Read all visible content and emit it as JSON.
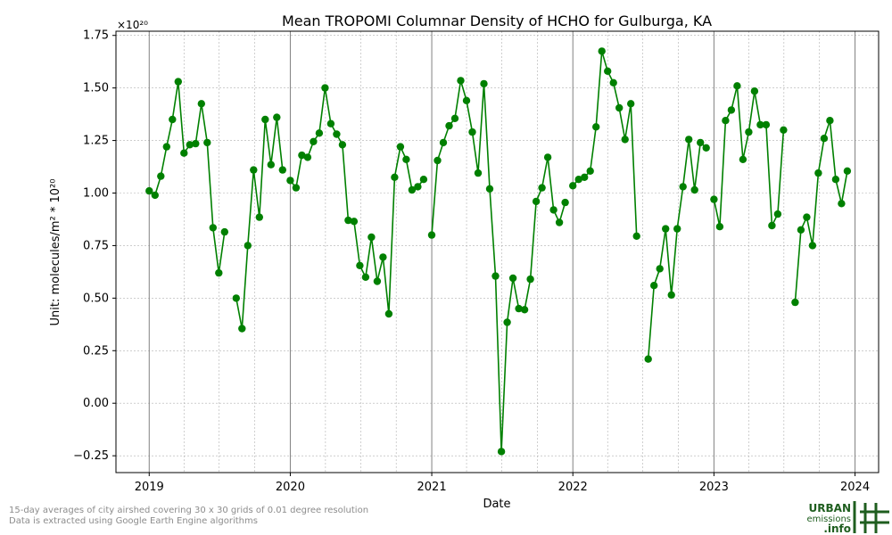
{
  "chart_data": {
    "type": "line",
    "title": "Mean TROPOMI Columnar Density of HCHO for Gulburga, KA",
    "xlabel": "Date",
    "ylabel": "Unit: molecules/m² * 10²⁰",
    "y_multiplier_label": "×10²⁰",
    "ylim": [
      -0.33,
      1.77
    ],
    "xlim": [
      "2018-10-07",
      "2024-03-02"
    ],
    "yticks": [
      -0.25,
      0.0,
      0.25,
      0.5,
      0.75,
      1.0,
      1.25,
      1.5,
      1.75
    ],
    "ytick_labels": [
      "−0.25",
      "0.00",
      "0.25",
      "0.50",
      "0.75",
      "1.00",
      "1.25",
      "1.50",
      "1.75"
    ],
    "xticks": [
      "2019-01-01",
      "2020-01-01",
      "2021-01-01",
      "2022-01-01",
      "2023-01-01",
      "2024-01-01"
    ],
    "xtick_labels": [
      "2019",
      "2020",
      "2021",
      "2022",
      "2023",
      "2024"
    ],
    "grid": true,
    "color": "#008000",
    "series": [
      {
        "x": [
          "2019-01-01",
          "2019-01-16",
          "2019-01-31",
          "2019-02-15",
          "2019-03-02",
          "2019-03-17",
          "2019-04-01",
          "2019-04-16",
          "2019-05-01",
          "2019-05-16",
          "2019-05-31",
          "2019-06-15",
          "2019-06-30",
          "2019-07-15",
          "2019-07-30",
          "2019-08-14",
          "2019-08-29",
          "2019-09-13",
          "2019-09-28",
          "2019-10-13",
          "2019-10-28",
          "2019-11-12",
          "2019-11-27",
          "2019-12-12",
          "2019-12-27",
          "2020-01-01",
          "2020-01-16",
          "2020-01-31",
          "2020-02-15",
          "2020-03-01",
          "2020-03-16",
          "2020-03-31",
          "2020-04-15",
          "2020-04-30",
          "2020-05-15",
          "2020-05-30",
          "2020-06-14",
          "2020-06-29",
          "2020-07-14",
          "2020-07-29",
          "2020-08-13",
          "2020-08-28",
          "2020-09-12",
          "2020-09-27",
          "2020-10-12",
          "2020-10-27",
          "2020-11-11",
          "2020-11-26",
          "2020-12-11",
          "2020-12-26",
          "2021-01-01",
          "2021-01-16",
          "2021-01-31",
          "2021-02-15",
          "2021-03-02",
          "2021-03-17",
          "2021-04-01",
          "2021-04-16",
          "2021-05-01",
          "2021-05-16",
          "2021-05-31",
          "2021-06-15",
          "2021-06-30",
          "2021-07-15",
          "2021-07-30",
          "2021-08-14",
          "2021-08-29",
          "2021-09-13",
          "2021-09-28",
          "2021-10-13",
          "2021-10-28",
          "2021-11-12",
          "2021-11-27",
          "2021-12-12",
          "2021-12-27",
          "2022-01-01",
          "2022-01-16",
          "2022-01-31",
          "2022-02-15",
          "2022-03-02",
          "2022-03-17",
          "2022-04-01",
          "2022-04-16",
          "2022-05-01",
          "2022-05-16",
          "2022-05-31",
          "2022-06-15",
          "2022-06-30",
          "2022-07-15",
          "2022-07-30",
          "2022-08-14",
          "2022-08-29",
          "2022-09-13",
          "2022-09-28",
          "2022-10-13",
          "2022-10-28",
          "2022-11-12",
          "2022-11-27",
          "2022-12-12",
          "2022-12-27",
          "2023-01-01",
          "2023-01-16",
          "2023-01-31",
          "2023-02-15",
          "2023-03-02",
          "2023-03-17",
          "2023-04-01",
          "2023-04-16",
          "2023-05-01",
          "2023-05-16",
          "2023-05-31",
          "2023-06-15",
          "2023-06-30",
          "2023-07-15",
          "2023-07-30",
          "2023-08-14",
          "2023-08-29",
          "2023-09-13",
          "2023-09-28",
          "2023-10-13",
          "2023-10-28",
          "2023-11-12",
          "2023-11-27",
          "2023-12-12",
          "2023-12-27"
        ],
        "values": [
          1.01,
          0.99,
          1.08,
          1.22,
          1.35,
          1.53,
          1.19,
          1.23,
          1.235,
          1.425,
          1.24,
          0.835,
          0.62,
          0.815,
          null,
          0.5,
          0.355,
          0.75,
          1.11,
          0.885,
          1.35,
          1.135,
          1.36,
          1.11,
          null,
          1.06,
          1.025,
          1.18,
          1.17,
          1.245,
          1.285,
          1.5,
          1.33,
          1.28,
          1.23,
          0.87,
          0.865,
          0.655,
          0.6,
          0.79,
          0.58,
          0.695,
          0.425,
          1.075,
          1.22,
          1.16,
          1.015,
          1.03,
          1.065,
          null,
          0.8,
          1.155,
          1.24,
          1.32,
          1.355,
          1.535,
          1.44,
          1.29,
          1.095,
          1.52,
          1.02,
          0.605,
          -0.23,
          0.385,
          0.595,
          0.45,
          0.445,
          0.59,
          0.96,
          1.025,
          1.17,
          0.92,
          0.86,
          0.955,
          null,
          1.035,
          1.065,
          1.075,
          1.105,
          1.315,
          1.675,
          1.58,
          1.525,
          1.405,
          1.255,
          1.425,
          0.795,
          null,
          0.21,
          0.56,
          0.64,
          0.83,
          0.515,
          0.83,
          1.03,
          1.255,
          1.015,
          1.24,
          1.215,
          null,
          0.97,
          0.84,
          1.345,
          1.395,
          1.51,
          1.16,
          1.29,
          1.485,
          1.325,
          1.325,
          0.845,
          0.9,
          1.3,
          null,
          0.48,
          0.825,
          0.885,
          0.75,
          1.095,
          1.26,
          1.345,
          1.065,
          0.95,
          1.105,
          null
        ]
      }
    ]
  },
  "footnote": {
    "line1": "15-day averages of city airshed covering 30 x 30 grids of 0.01 degree resolution",
    "line2": "Data is extracted using Google Earth Engine algorithms"
  },
  "logo": {
    "word1": "URBAN",
    "word2": "emissions",
    "word3": ".info",
    "color": "#1f5e1f"
  }
}
